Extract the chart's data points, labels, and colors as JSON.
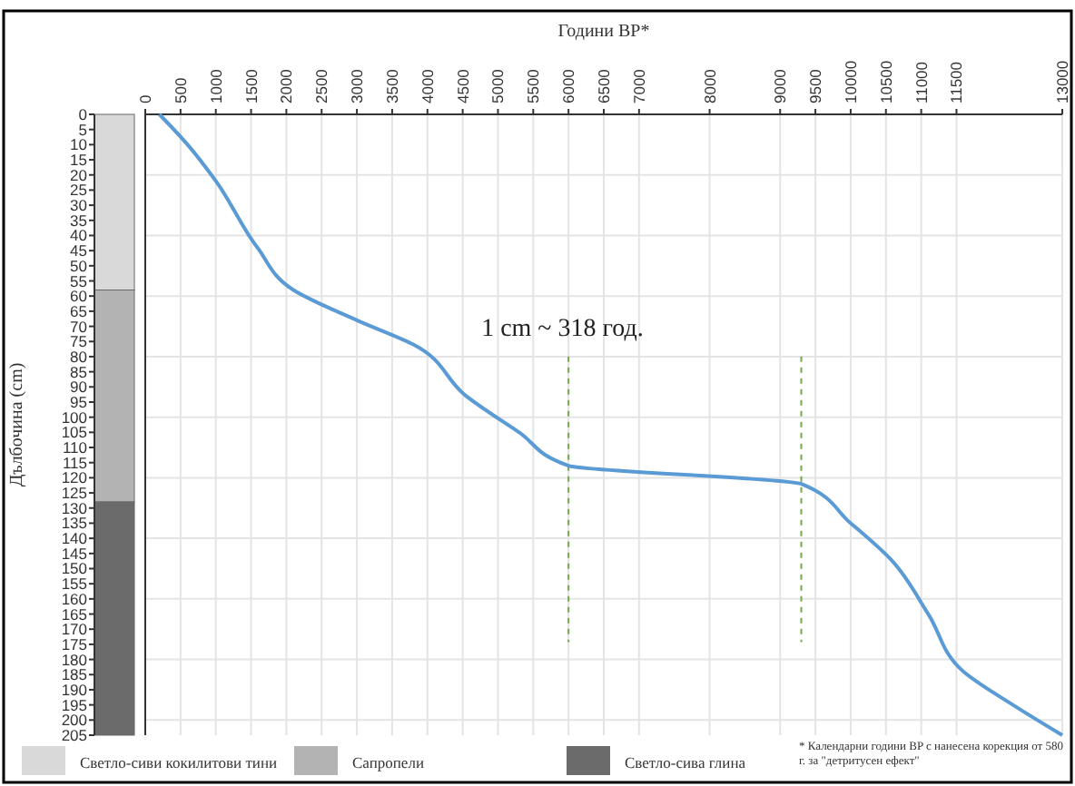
{
  "chart_data": [
    {
      "type": "bar",
      "stacked": true,
      "ylabel": "Дълбочина (cm)",
      "categories": [
        null
      ],
      "ylim": [
        205,
        0
      ],
      "yticks": [
        0,
        5,
        10,
        15,
        20,
        25,
        30,
        35,
        40,
        45,
        50,
        55,
        60,
        65,
        70,
        75,
        80,
        85,
        90,
        95,
        100,
        105,
        110,
        115,
        120,
        125,
        130,
        135,
        140,
        145,
        150,
        155,
        160,
        165,
        170,
        175,
        180,
        185,
        190,
        195,
        200,
        205
      ],
      "tick_labels": "y",
      "legend": "bottom",
      "series": [
        {
          "name": "Светло-сиви кокилитови тини",
          "color": "#d9d9d9",
          "values": [
            58
          ]
        },
        {
          "name": "Сапропели",
          "color": "#b3b3b3",
          "values": [
            70
          ]
        },
        {
          "name": "Светло-сива глина",
          "color": "#6b6b6b",
          "values": [
            77
          ]
        }
      ]
    },
    {
      "type": "line",
      "xlabel": "Години BP*",
      "xlim": [
        0,
        13000
      ],
      "xticks": [
        0,
        500,
        1000,
        1500,
        2000,
        2500,
        3000,
        3500,
        4000,
        4500,
        5000,
        5500,
        6000,
        6500,
        7000,
        8000,
        9000,
        9500,
        10000,
        10500,
        11000,
        11500,
        13000
      ],
      "ylim": [
        205,
        0
      ],
      "yticks": [
        0,
        20,
        40,
        60,
        80,
        100,
        120,
        140,
        160,
        180,
        200
      ],
      "tick_labels": "x",
      "grid": true,
      "series": [
        {
          "color": "#5b9bd5",
          "x": [
            200,
            600,
            1000,
            1590,
            2100,
            3000,
            3800,
            4550,
            5300,
            6000,
            9300,
            10000,
            10570,
            11100,
            11600,
            12300,
            13000
          ],
          "values": [
            0,
            10,
            22,
            44,
            58,
            68,
            76,
            93,
            105,
            116,
            122,
            135,
            147,
            165,
            184,
            195,
            205
          ]
        }
      ],
      "ref_lines": [
        {
          "axis": "x",
          "value": 6000,
          "color": "#70ad47",
          "line_style": "dashed"
        },
        {
          "axis": "x",
          "value": 9300,
          "color": "#70ad47",
          "line_style": "dashed"
        }
      ],
      "annotations": [
        {
          "text": "1 cm ~ 318 год.",
          "x": 6000,
          "y": 78
        },
        "* Календарни години BP с нанесена корекция от 580 г. за \"детритусен ефект\""
      ]
    }
  ]
}
